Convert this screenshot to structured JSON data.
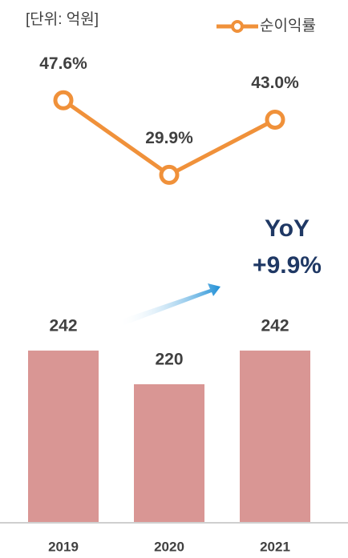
{
  "chart_data": {
    "type": "bar-line",
    "unit_label": "[단위: 억원]",
    "categories": [
      "2019",
      "2020",
      "2021"
    ],
    "values": [
      242,
      220,
      242
    ],
    "color": "#d99694",
    "ylim": [
      130,
      300
    ],
    "series": [
      {
        "name": "순이익률",
        "color": "#f0913a",
        "axis": "y2",
        "values": [
          47.6,
          29.9,
          43.0
        ],
        "value_labels": [
          "47.6%",
          "29.9%",
          "43.0%"
        ]
      }
    ],
    "y2lim": [
      22,
      60
    ],
    "annotation": {
      "title": "YoY",
      "value": "+9.9%",
      "color": "#1f3864"
    }
  }
}
